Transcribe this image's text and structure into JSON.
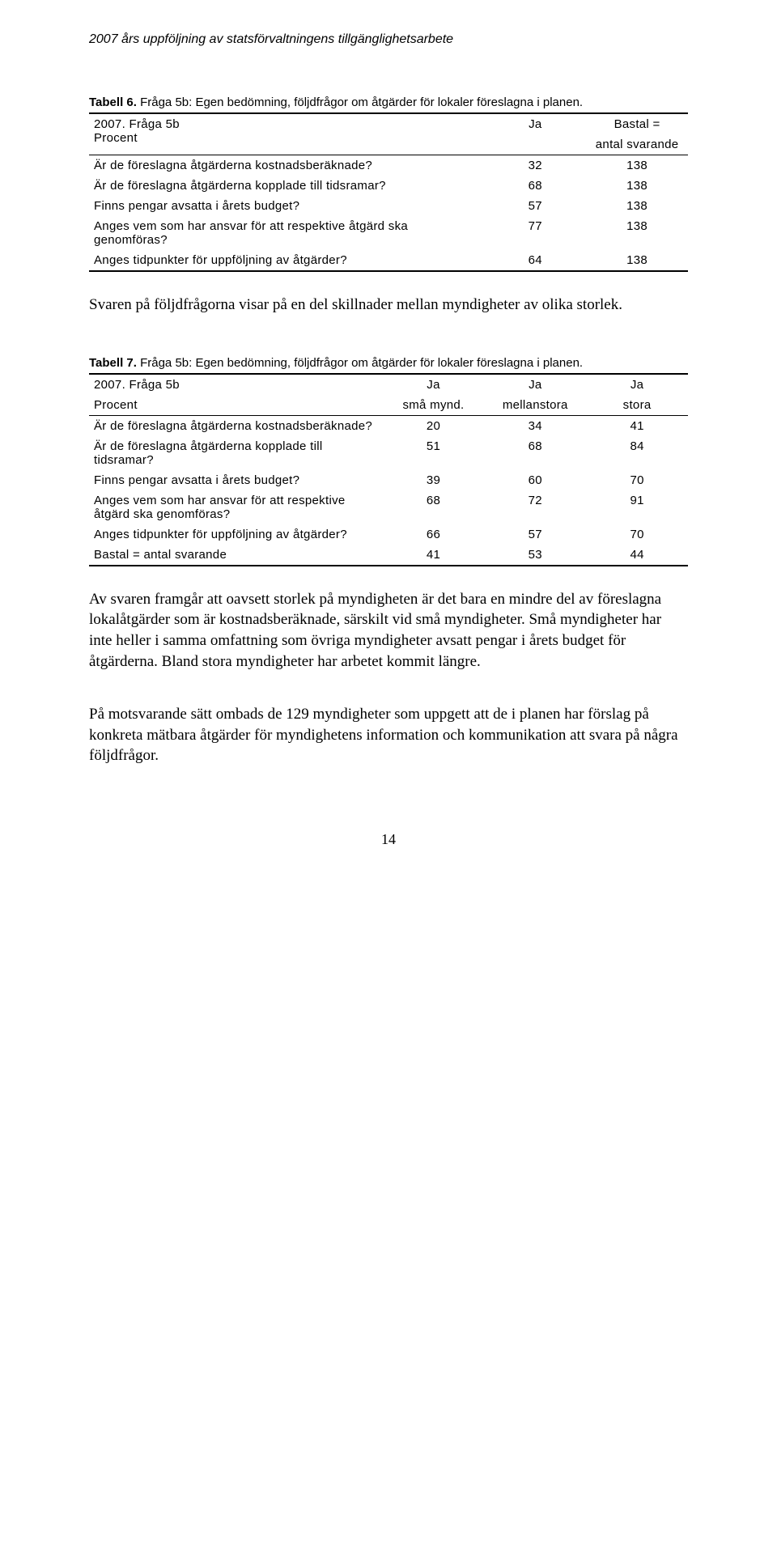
{
  "header": "2007 års uppföljning av statsförvaltningens tillgänglighetsarbete",
  "table6": {
    "caption_bold": "Tabell 6.",
    "caption_rest": " Fråga 5b: Egen bedömning, följdfrågor om åtgärder för lokaler föreslagna i planen.",
    "head1_line1": "2007. Fråga 5b",
    "head1_line2": "Procent",
    "head2": "Ja",
    "head3_line1": "Bastal =",
    "head3_line2": "antal svarande",
    "rows": [
      {
        "label": "Är de föreslagna åtgärderna kostnadsberäknade?",
        "c1": "32",
        "c2": "138"
      },
      {
        "label": "Är de föreslagna åtgärderna kopplade till tidsramar?",
        "c1": "68",
        "c2": "138"
      },
      {
        "label": "Finns pengar avsatta i årets budget?",
        "c1": "57",
        "c2": "138"
      },
      {
        "label": "Anges vem som har ansvar för att respektive åtgärd ska genomföras?",
        "c1": "77",
        "c2": "138"
      },
      {
        "label": "Anges tidpunkter för uppföljning av åtgärder?",
        "c1": "64",
        "c2": "138"
      }
    ]
  },
  "para1": "Svaren på följdfrågorna visar på en del skillnader mellan myndigheter av olika storlek.",
  "table7": {
    "caption_bold": "Tabell 7.",
    "caption_rest": " Fråga 5b: Egen bedömning, följdfrågor om åtgärder för lokaler föreslagna i planen.",
    "head1_line1": "2007. Fråga 5b",
    "head1_line2": "Procent",
    "head2_line1": "Ja",
    "head2_line2": "små mynd.",
    "head3_line1": "Ja",
    "head3_line2": "mellanstora",
    "head4_line1": "Ja",
    "head4_line2": "stora",
    "rows": [
      {
        "label": "Är de föreslagna åtgärderna kostnadsberäknade?",
        "c1": "20",
        "c2": "34",
        "c3": "41"
      },
      {
        "label": "Är de föreslagna åtgärderna kopplade  till tidsramar?",
        "c1": "51",
        "c2": "68",
        "c3": "84"
      },
      {
        "label": "Finns pengar avsatta i årets budget?",
        "c1": "39",
        "c2": "60",
        "c3": "70"
      },
      {
        "label": "Anges vem som har ansvar för att respektive åtgärd ska genomföras?",
        "c1": "68",
        "c2": "72",
        "c3": "91"
      },
      {
        "label": "Anges tidpunkter för uppföljning av åtgärder?",
        "c1": "66",
        "c2": "57",
        "c3": "70"
      },
      {
        "label": "Bastal = antal svarande",
        "c1": "41",
        "c2": "53",
        "c3": "44"
      }
    ]
  },
  "para2": "Av svaren framgår att oavsett storlek på myndigheten är det bara en mindre del av föreslagna lokalåtgärder som är kostnadsberäknade, särskilt vid små myndigheter. Små myndigheter har inte heller i samma omfattning som övriga myndigheter avsatt pengar i årets budget för åtgärderna. Bland stora myndigheter har arbetet kommit längre.",
  "para3": "På motsvarande sätt ombads de 129 myndigheter som uppgett att de i planen har förslag på konkreta mätbara åtgärder för myndighetens information och kommunikation att svara på några följdfrågor.",
  "page_number": "14"
}
